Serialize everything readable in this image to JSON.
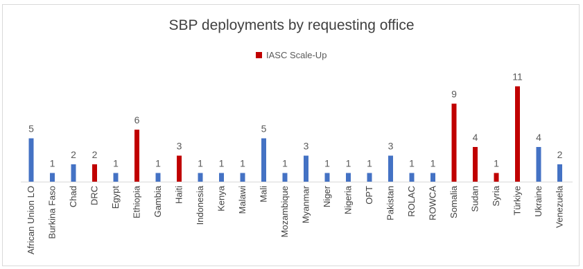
{
  "chart_data": {
    "type": "bar",
    "title": "SBP deployments by requesting office",
    "legend": {
      "entries": [
        "IASC Scale-Up"
      ],
      "placement": "top"
    },
    "categories": [
      "African Union LO",
      "Burkina Faso",
      "Chad",
      "DRC",
      "Egypt",
      "Ethiopia",
      "Gambia",
      "Haiti",
      "Indonesia",
      "Kenya",
      "Malawi",
      "Mali",
      "Mozambique",
      "Myanmar",
      "Niger",
      "Nigeria",
      "OPT",
      "Pakistan",
      "ROLAC",
      "ROWCA",
      "Somalia",
      "Sudan",
      "Syria",
      "Türkiye",
      "Ukraine",
      "Venezuela"
    ],
    "values": [
      5,
      1,
      2,
      2,
      1,
      6,
      1,
      3,
      1,
      1,
      1,
      5,
      1,
      3,
      1,
      1,
      1,
      3,
      1,
      1,
      9,
      4,
      1,
      11,
      4,
      2
    ],
    "iasc_scale_up": [
      false,
      false,
      false,
      true,
      false,
      true,
      false,
      true,
      false,
      false,
      false,
      false,
      false,
      false,
      false,
      false,
      false,
      false,
      false,
      false,
      true,
      true,
      true,
      true,
      false,
      false
    ],
    "colors": {
      "default": "#4472c4",
      "iasc_scale_up": "#c00000"
    },
    "ylim": [
      0,
      11
    ],
    "grid": false,
    "xlabel": "",
    "ylabel": ""
  }
}
